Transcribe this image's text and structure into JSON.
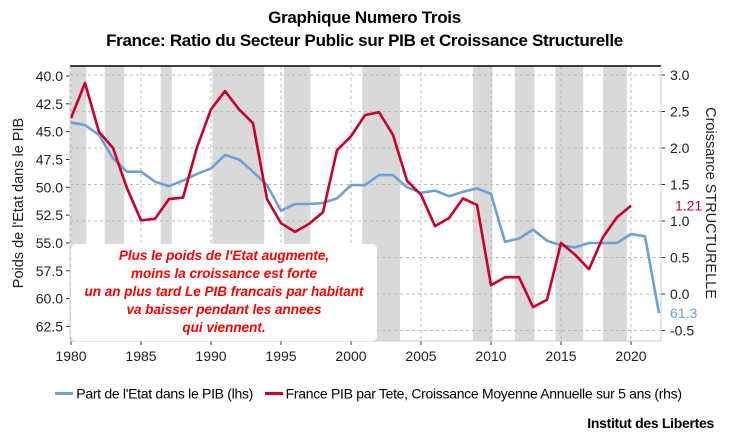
{
  "title": [
    "Graphique Numero Trois",
    "France: Ratio du Secteur Public sur PIB et Croissance Structurelle"
  ],
  "source": "Institut des Libertes",
  "colors": {
    "blue": "#6f9fd8",
    "red": "#c8002a",
    "band": "#d9d9d9",
    "note": "#ff0000"
  },
  "chart_data": {
    "type": "line",
    "title": "France: Ratio du Secteur Public sur PIB et Croissance Structurelle",
    "xlabel": "",
    "ylabel_left": "Poids de l'Etat dans le PIB",
    "ylabel_right": "Croissance STRUCTURELLE",
    "xlim": [
      1980,
      2022
    ],
    "ylim_left": [
      63.5,
      39.0
    ],
    "left_axis_inverted": true,
    "ylim_right": [
      -0.65,
      3.15
    ],
    "x_ticks": [
      "1980",
      "1985",
      "1990",
      "1995",
      "2000",
      "2005",
      "2010",
      "2015",
      "2020"
    ],
    "left_ticks": [
      "40.0",
      "42.5",
      "45.0",
      "47.5",
      "50.0",
      "52.5",
      "55.0",
      "57.5",
      "60.0",
      "62.5"
    ],
    "right_ticks": [
      "3.0",
      "2.5",
      "2.0",
      "1.5",
      "1.0",
      "0.5",
      "0.0",
      "-0.5"
    ],
    "grid": true,
    "legend_placement": "bottom",
    "shaded_periods": [
      [
        1980,
        1981.1
      ],
      [
        1982.4,
        1983.8
      ],
      [
        1986.4,
        1987.2
      ],
      [
        1990.1,
        1993.8
      ],
      [
        1995.2,
        1997.1
      ],
      [
        2000.8,
        2003.5
      ],
      [
        2008.7,
        2010.1
      ],
      [
        2011.7,
        2013.1
      ],
      [
        2014.6,
        2016.6
      ],
      [
        2018.0,
        2019.7
      ]
    ],
    "series": [
      {
        "name": "Part de l'Etat dans le PIB (lhs)",
        "axis": "left",
        "color": "#6f9fd8",
        "x": [
          1980,
          1981,
          1982,
          1983,
          1984,
          1985,
          1986,
          1987,
          1988,
          1989,
          1990,
          1991,
          1992,
          1993,
          1994,
          1995,
          1996,
          1997,
          1998,
          1999,
          2000,
          2001,
          2002,
          2003,
          2004,
          2005,
          2006,
          2007,
          2008,
          2009,
          2010,
          2011,
          2012,
          2013,
          2014,
          2015,
          2016,
          2017,
          2018,
          2019,
          2020,
          2021,
          2022
        ],
        "values": [
          44.2,
          44.4,
          45.3,
          47.4,
          48.6,
          48.6,
          49.5,
          49.9,
          49.4,
          48.8,
          48.3,
          47.1,
          47.5,
          48.6,
          49.8,
          52.1,
          51.5,
          51.5,
          51.4,
          51.0,
          49.8,
          49.8,
          48.9,
          48.9,
          50.0,
          50.5,
          50.3,
          50.8,
          50.4,
          50.1,
          50.6,
          54.9,
          54.6,
          53.8,
          54.8,
          55.2,
          55.4,
          55.0,
          55.0,
          55.0,
          54.2,
          54.4,
          61.3
        ],
        "end_label": "61.3"
      },
      {
        "name": "France PIB par Tete, Croissance Moyenne Annuelle sur 5 ans (rhs)",
        "axis": "right",
        "color": "#c8002a",
        "x": [
          1980,
          1981,
          1982,
          1983,
          1984,
          1985,
          1986,
          1987,
          1988,
          1989,
          1990,
          1991,
          1992,
          1993,
          1994,
          1995,
          1996,
          1997,
          1998,
          1999,
          2000,
          2001,
          2002,
          2003,
          2004,
          2005,
          2006,
          2007,
          2008,
          2009,
          2010,
          2011,
          2012,
          2013,
          2014,
          2015,
          2016,
          2017,
          2018,
          2019,
          2020
        ],
        "values": [
          2.41,
          2.89,
          2.22,
          2.0,
          1.45,
          1.01,
          1.03,
          1.3,
          1.32,
          2.01,
          2.53,
          2.78,
          2.53,
          2.34,
          1.3,
          0.97,
          0.85,
          0.96,
          1.12,
          1.97,
          2.16,
          2.45,
          2.49,
          2.18,
          1.55,
          1.36,
          0.93,
          1.04,
          1.31,
          1.22,
          0.12,
          0.23,
          0.23,
          -0.18,
          -0.08,
          0.7,
          0.54,
          0.34,
          0.78,
          1.05,
          1.21
        ],
        "end_label": "1.21"
      }
    ],
    "annotation": [
      "Plus le poids de l'Etat augmente,",
      "moins la croissance est forte",
      "un an plus tard Le PIB francais par habitant",
      "va baisser pendant les annees",
      "qui viennent."
    ]
  }
}
